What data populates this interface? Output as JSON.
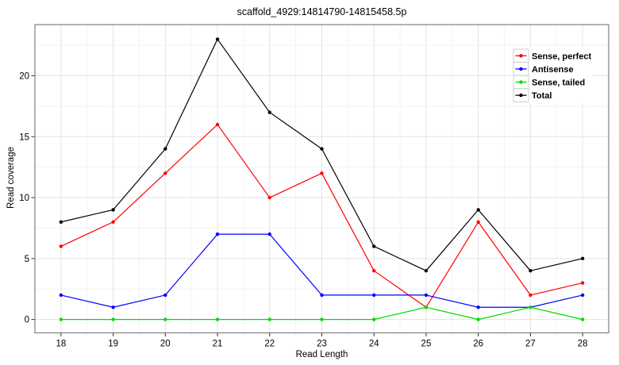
{
  "chart_data": {
    "type": "line",
    "title": "scaffold_4929:14814790-14815458.5p",
    "xlabel": "Read Length",
    "ylabel": "Read coverage",
    "x": [
      18,
      19,
      20,
      21,
      22,
      23,
      24,
      25,
      26,
      27,
      28
    ],
    "series": [
      {
        "name": "Sense, perfect",
        "color": "#ff0000",
        "values": [
          6,
          8,
          12,
          16,
          10,
          12,
          4,
          1,
          8,
          2,
          3
        ]
      },
      {
        "name": "Antisense",
        "color": "#0000ff",
        "values": [
          2,
          1,
          2,
          7,
          7,
          2,
          2,
          2,
          1,
          1,
          2
        ]
      },
      {
        "name": "Sense, tailed",
        "color": "#00dd00",
        "values": [
          0,
          0,
          0,
          0,
          0,
          0,
          0,
          1,
          0,
          1,
          0
        ]
      },
      {
        "name": "Total",
        "color": "#000000",
        "values": [
          8,
          9,
          14,
          23,
          17,
          14,
          6,
          4,
          9,
          4,
          5
        ]
      }
    ],
    "x_ticks": [
      18,
      19,
      20,
      21,
      22,
      23,
      24,
      25,
      26,
      27,
      28
    ],
    "y_ticks": [
      0,
      5,
      10,
      15,
      20
    ],
    "xlim": [
      17.5,
      28.5
    ],
    "ylim": [
      -1.1,
      24.2
    ],
    "grid": "major+minor",
    "legend_position": "top-right",
    "legend_labels_bold": true,
    "colors": {
      "background": "#ffffff",
      "panel_border": "#7f7f7f",
      "grid_major": "#e3e3e3",
      "grid_minor": "#f3f3f3",
      "tick_mark": "#333333",
      "tick_label": "#000000",
      "legend_key_border": "#cccccc"
    }
  }
}
